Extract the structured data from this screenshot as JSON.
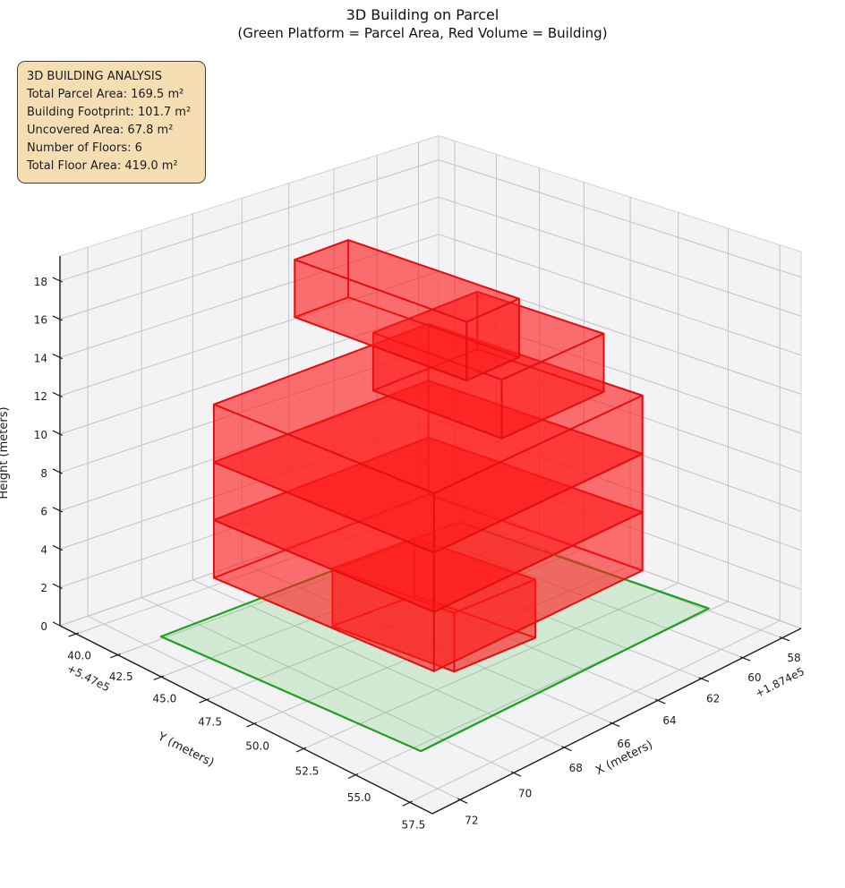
{
  "title": {
    "line1": "3D Building on Parcel",
    "line2": "(Green Platform = Parcel Area, Red Volume = Building)"
  },
  "info_box": {
    "lines": [
      "3D BUILDING ANALYSIS",
      "Total Parcel Area: 169.5 m²",
      "Building Footprint: 101.7 m²",
      "Uncovered Area: 67.8 m²",
      "Number of Floors: 6",
      "Total Floor Area: 419.0 m²"
    ]
  },
  "chart_data": {
    "type": "3d-building",
    "title": "3D Building on Parcel",
    "subtitle": "(Green Platform = Parcel Area, Red Volume = Building)",
    "stats": {
      "total_parcel_area_m2": 169.5,
      "building_footprint_m2": 101.7,
      "uncovered_area_m2": 67.8,
      "number_of_floors": 6,
      "total_floor_area_m2": 419.0
    },
    "axes": {
      "x": {
        "label": "X (meters)",
        "ticks": [
          58,
          60,
          62,
          64,
          66,
          68,
          70,
          72
        ],
        "offset_text": "+1.874e5",
        "range": [
          57,
          73
        ]
      },
      "y": {
        "label": "Y (meters)",
        "ticks": [
          40.0,
          42.5,
          45.0,
          47.5,
          50.0,
          52.5,
          55.0,
          57.5
        ],
        "offset_text": "+5.47e5",
        "range": [
          39,
          58.5
        ]
      },
      "z": {
        "label": "Height (meters)",
        "ticks": [
          0,
          2,
          4,
          6,
          8,
          10,
          12,
          14,
          16,
          18
        ],
        "range": [
          0,
          19.3
        ]
      }
    },
    "parcel": {
      "z": 0,
      "polygon": [
        [
          70.88,
          55.33
        ],
        [
          57.87,
          54.88
        ],
        [
          58.32,
          41.87
        ],
        [
          71.33,
          42.32
        ]
      ],
      "fill": "#3fbf3f",
      "fill_opacity": 0.18,
      "edge": "#1f9e1f",
      "edge_width": 2.2
    },
    "building": {
      "edge": "#e21010",
      "edge_width": 1.9,
      "fill": "#ff1a1a",
      "fill_opacity": 0.38,
      "floor_height_m": 3,
      "floors": [
        {
          "level": 1,
          "z": [
            0,
            3
          ],
          "footprint": [
            [
              66.8,
              51.9
            ],
            [
              63.4,
              52.0
            ],
            [
              63.8,
              46.1
            ],
            [
              67.2,
              46.0
            ]
          ]
        },
        {
          "level": 2,
          "z": [
            3,
            6
          ],
          "footprint": [
            [
              69.8,
              54.6
            ],
            [
              60.56,
              54.28
            ],
            [
              60.94,
              43.28
            ],
            [
              70.18,
              43.6
            ]
          ]
        },
        {
          "level": 3,
          "z": [
            6,
            9
          ],
          "footprint": [
            [
              69.8,
              54.6
            ],
            [
              60.56,
              54.28
            ],
            [
              60.94,
              43.28
            ],
            [
              70.18,
              43.6
            ]
          ]
        },
        {
          "level": 4,
          "z": [
            9,
            12
          ],
          "footprint": [
            [
              69.8,
              54.6
            ],
            [
              60.56,
              54.28
            ],
            [
              60.94,
              43.28
            ],
            [
              70.18,
              43.6
            ]
          ]
        },
        {
          "level": 5,
          "z": [
            12,
            15
          ],
          "footprint": [
            [
              65.89,
              53.18
            ],
            [
              61.19,
              53.02
            ],
            [
              61.41,
              46.62
            ],
            [
              66.11,
              46.78
            ]
          ]
        },
        {
          "level": 6,
          "z": [
            15,
            18
          ],
          "footprint": [
            [
              66.65,
              52.34
            ],
            [
              64.35,
              52.26
            ],
            [
              64.66,
              43.46
            ],
            [
              66.96,
              43.54
            ]
          ]
        }
      ]
    }
  },
  "colors": {
    "pane": "#f3f3f5",
    "grid": "#c3c3c8",
    "pane_border": "#d3d3d9",
    "spine": "#1b1b1b",
    "tick_text": "#1c1c1c",
    "info_bg": "#f5deb3",
    "info_border": "#46423a"
  }
}
